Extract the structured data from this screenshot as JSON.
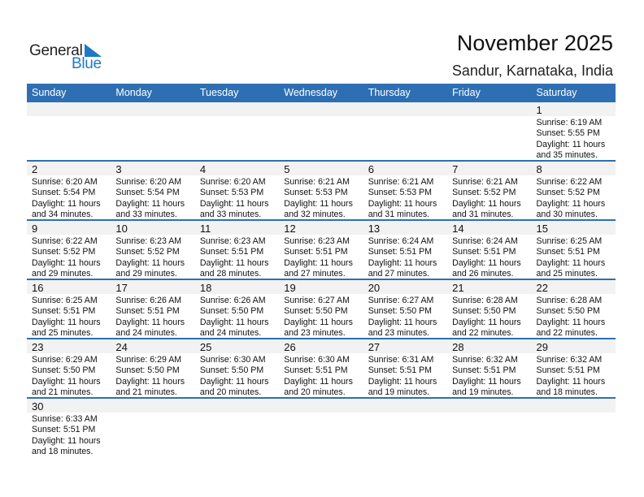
{
  "logo": {
    "word1": "General",
    "word2": "Blue"
  },
  "header": {
    "title": "November 2025",
    "location": "Sandur, Karnataka, India"
  },
  "colors": {
    "accent": "#2e6fb4",
    "band": "#f2f2f2",
    "logo_blue": "#1f78c8"
  },
  "weekdays": [
    "Sunday",
    "Monday",
    "Tuesday",
    "Wednesday",
    "Thursday",
    "Friday",
    "Saturday"
  ],
  "weeks": [
    [
      null,
      null,
      null,
      null,
      null,
      null,
      {
        "day": "1",
        "sunrise": "Sunrise: 6:19 AM",
        "sunset": "Sunset: 5:55 PM",
        "daylight": "Daylight: 11 hours",
        "minutes": "and 35 minutes."
      }
    ],
    [
      {
        "day": "2",
        "sunrise": "Sunrise: 6:20 AM",
        "sunset": "Sunset: 5:54 PM",
        "daylight": "Daylight: 11 hours",
        "minutes": "and 34 minutes."
      },
      {
        "day": "3",
        "sunrise": "Sunrise: 6:20 AM",
        "sunset": "Sunset: 5:54 PM",
        "daylight": "Daylight: 11 hours",
        "minutes": "and 33 minutes."
      },
      {
        "day": "4",
        "sunrise": "Sunrise: 6:20 AM",
        "sunset": "Sunset: 5:53 PM",
        "daylight": "Daylight: 11 hours",
        "minutes": "and 33 minutes."
      },
      {
        "day": "5",
        "sunrise": "Sunrise: 6:21 AM",
        "sunset": "Sunset: 5:53 PM",
        "daylight": "Daylight: 11 hours",
        "minutes": "and 32 minutes."
      },
      {
        "day": "6",
        "sunrise": "Sunrise: 6:21 AM",
        "sunset": "Sunset: 5:53 PM",
        "daylight": "Daylight: 11 hours",
        "minutes": "and 31 minutes."
      },
      {
        "day": "7",
        "sunrise": "Sunrise: 6:21 AM",
        "sunset": "Sunset: 5:52 PM",
        "daylight": "Daylight: 11 hours",
        "minutes": "and 31 minutes."
      },
      {
        "day": "8",
        "sunrise": "Sunrise: 6:22 AM",
        "sunset": "Sunset: 5:52 PM",
        "daylight": "Daylight: 11 hours",
        "minutes": "and 30 minutes."
      }
    ],
    [
      {
        "day": "9",
        "sunrise": "Sunrise: 6:22 AM",
        "sunset": "Sunset: 5:52 PM",
        "daylight": "Daylight: 11 hours",
        "minutes": "and 29 minutes."
      },
      {
        "day": "10",
        "sunrise": "Sunrise: 6:23 AM",
        "sunset": "Sunset: 5:52 PM",
        "daylight": "Daylight: 11 hours",
        "minutes": "and 29 minutes."
      },
      {
        "day": "11",
        "sunrise": "Sunrise: 6:23 AM",
        "sunset": "Sunset: 5:51 PM",
        "daylight": "Daylight: 11 hours",
        "minutes": "and 28 minutes."
      },
      {
        "day": "12",
        "sunrise": "Sunrise: 6:23 AM",
        "sunset": "Sunset: 5:51 PM",
        "daylight": "Daylight: 11 hours",
        "minutes": "and 27 minutes."
      },
      {
        "day": "13",
        "sunrise": "Sunrise: 6:24 AM",
        "sunset": "Sunset: 5:51 PM",
        "daylight": "Daylight: 11 hours",
        "minutes": "and 27 minutes."
      },
      {
        "day": "14",
        "sunrise": "Sunrise: 6:24 AM",
        "sunset": "Sunset: 5:51 PM",
        "daylight": "Daylight: 11 hours",
        "minutes": "and 26 minutes."
      },
      {
        "day": "15",
        "sunrise": "Sunrise: 6:25 AM",
        "sunset": "Sunset: 5:51 PM",
        "daylight": "Daylight: 11 hours",
        "minutes": "and 25 minutes."
      }
    ],
    [
      {
        "day": "16",
        "sunrise": "Sunrise: 6:25 AM",
        "sunset": "Sunset: 5:51 PM",
        "daylight": "Daylight: 11 hours",
        "minutes": "and 25 minutes."
      },
      {
        "day": "17",
        "sunrise": "Sunrise: 6:26 AM",
        "sunset": "Sunset: 5:51 PM",
        "daylight": "Daylight: 11 hours",
        "minutes": "and 24 minutes."
      },
      {
        "day": "18",
        "sunrise": "Sunrise: 6:26 AM",
        "sunset": "Sunset: 5:50 PM",
        "daylight": "Daylight: 11 hours",
        "minutes": "and 24 minutes."
      },
      {
        "day": "19",
        "sunrise": "Sunrise: 6:27 AM",
        "sunset": "Sunset: 5:50 PM",
        "daylight": "Daylight: 11 hours",
        "minutes": "and 23 minutes."
      },
      {
        "day": "20",
        "sunrise": "Sunrise: 6:27 AM",
        "sunset": "Sunset: 5:50 PM",
        "daylight": "Daylight: 11 hours",
        "minutes": "and 23 minutes."
      },
      {
        "day": "21",
        "sunrise": "Sunrise: 6:28 AM",
        "sunset": "Sunset: 5:50 PM",
        "daylight": "Daylight: 11 hours",
        "minutes": "and 22 minutes."
      },
      {
        "day": "22",
        "sunrise": "Sunrise: 6:28 AM",
        "sunset": "Sunset: 5:50 PM",
        "daylight": "Daylight: 11 hours",
        "minutes": "and 22 minutes."
      }
    ],
    [
      {
        "day": "23",
        "sunrise": "Sunrise: 6:29 AM",
        "sunset": "Sunset: 5:50 PM",
        "daylight": "Daylight: 11 hours",
        "minutes": "and 21 minutes."
      },
      {
        "day": "24",
        "sunrise": "Sunrise: 6:29 AM",
        "sunset": "Sunset: 5:50 PM",
        "daylight": "Daylight: 11 hours",
        "minutes": "and 21 minutes."
      },
      {
        "day": "25",
        "sunrise": "Sunrise: 6:30 AM",
        "sunset": "Sunset: 5:50 PM",
        "daylight": "Daylight: 11 hours",
        "minutes": "and 20 minutes."
      },
      {
        "day": "26",
        "sunrise": "Sunrise: 6:30 AM",
        "sunset": "Sunset: 5:51 PM",
        "daylight": "Daylight: 11 hours",
        "minutes": "and 20 minutes."
      },
      {
        "day": "27",
        "sunrise": "Sunrise: 6:31 AM",
        "sunset": "Sunset: 5:51 PM",
        "daylight": "Daylight: 11 hours",
        "minutes": "and 19 minutes."
      },
      {
        "day": "28",
        "sunrise": "Sunrise: 6:32 AM",
        "sunset": "Sunset: 5:51 PM",
        "daylight": "Daylight: 11 hours",
        "minutes": "and 19 minutes."
      },
      {
        "day": "29",
        "sunrise": "Sunrise: 6:32 AM",
        "sunset": "Sunset: 5:51 PM",
        "daylight": "Daylight: 11 hours",
        "minutes": "and 18 minutes."
      }
    ],
    [
      {
        "day": "30",
        "sunrise": "Sunrise: 6:33 AM",
        "sunset": "Sunset: 5:51 PM",
        "daylight": "Daylight: 11 hours",
        "minutes": "and 18 minutes."
      },
      null,
      null,
      null,
      null,
      null,
      null
    ]
  ]
}
